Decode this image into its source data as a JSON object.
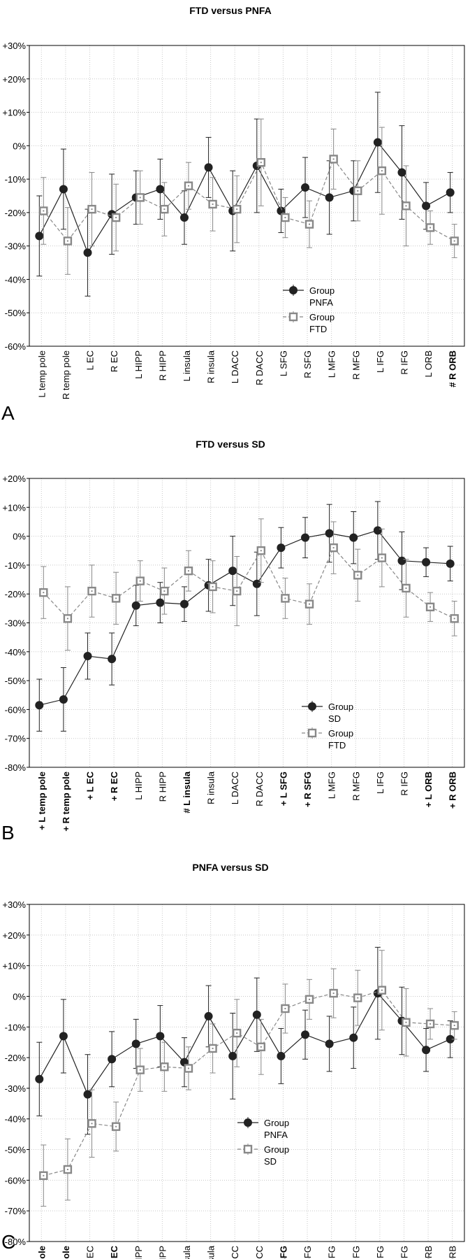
{
  "chart_data": [
    {
      "type": "line",
      "panel_label": "A",
      "title": "FTD versus PNFA",
      "ylim": [
        -60,
        30
      ],
      "ytick_labels": [
        "+30%",
        "+20%",
        "+10%",
        "0%",
        "-10%",
        "-20%",
        "-30%",
        "-40%",
        "-50%",
        "-60%"
      ],
      "grid": true,
      "legend_position": "bottom-center",
      "categories": [
        "L temp pole",
        "R temp pole",
        "L EC",
        "R EC",
        "L HIPP",
        "R HIPP",
        "L insula",
        "R insula",
        "L DACC",
        "R DACC",
        "L SFG",
        "R SFG",
        "L MFG",
        "R MFG",
        "L IFG",
        "R IFG",
        "L ORB",
        "# R ORB"
      ],
      "bold_categories": [
        "# R ORB"
      ],
      "series": [
        {
          "legend": [
            "Group",
            "PNFA"
          ],
          "style": "solid",
          "marker": "circle",
          "color": "#222222",
          "values": [
            -27,
            -13,
            -32,
            -20.5,
            -15.5,
            -13,
            -21.5,
            -6.5,
            -19.5,
            -6,
            -19.5,
            -12.5,
            -15.5,
            -13.5,
            1,
            -8,
            -18,
            -14
          ],
          "err": [
            12,
            12,
            13,
            12,
            8,
            9,
            8,
            9,
            12,
            14,
            6.5,
            9,
            11,
            9,
            15,
            14,
            7,
            6
          ]
        },
        {
          "legend": [
            "Group",
            "FTD"
          ],
          "style": "dashed",
          "marker": "square",
          "color": "#888888",
          "values": [
            -19.5,
            -28.5,
            -19,
            -21.5,
            -15.5,
            -19,
            -12,
            -17.5,
            -19,
            -5,
            -21.5,
            -23.5,
            -4,
            -13.5,
            -7.5,
            -18,
            -24.5,
            -28.5
          ],
          "err": [
            10,
            10,
            11,
            10,
            8,
            8,
            7,
            8,
            10,
            13,
            6,
            7,
            9,
            9,
            13,
            12,
            5,
            5
          ]
        }
      ]
    },
    {
      "type": "line",
      "panel_label": "B",
      "title": "FTD versus SD",
      "ylim": [
        -80,
        20
      ],
      "ytick_labels": [
        "+20%",
        "+10%",
        "0%",
        "-10%",
        "-20%",
        "-30%",
        "-40%",
        "-50%",
        "-60%",
        "-70%",
        "-80%"
      ],
      "grid": true,
      "legend_position": "bottom-right",
      "categories": [
        "+ L temp pole",
        "+ R temp pole",
        "+ L EC",
        "+ R EC",
        "L HIPP",
        "R HIPP",
        "# L insula",
        "R insula",
        "L DACC",
        "R DACC",
        "+ L SFG",
        "+ R SFG",
        "L MFG",
        "R MFG",
        "L IFG",
        "R IFG",
        "+ L ORB",
        "+ R ORB"
      ],
      "bold_categories": [
        "+ L temp pole",
        "+ R temp pole",
        "+ L EC",
        "+ R EC",
        "# L insula",
        "+ L SFG",
        "+ R SFG",
        "+ L ORB",
        "+ R ORB"
      ],
      "series": [
        {
          "legend": [
            "Group",
            "SD"
          ],
          "style": "solid",
          "marker": "circle",
          "color": "#222222",
          "values": [
            -58.5,
            -56.5,
            -41.5,
            -42.5,
            -24,
            -23,
            -23.5,
            -17,
            -12,
            -16.5,
            -4,
            -0.5,
            1,
            -0.5,
            2,
            -8.5,
            -9,
            -9.5
          ],
          "err": [
            9,
            11,
            8,
            9,
            7,
            7,
            6,
            9,
            12,
            11,
            7,
            7,
            10,
            9,
            10,
            10,
            5,
            6
          ]
        },
        {
          "legend": [
            "Group",
            "FTD"
          ],
          "style": "dashed",
          "marker": "square",
          "color": "#888888",
          "values": [
            -19.5,
            -28.5,
            -19,
            -21.5,
            -15.5,
            -19,
            -12,
            -17.5,
            -19,
            -5,
            -21.5,
            -23.5,
            -4,
            -13.5,
            -7.5,
            -18,
            -24.5,
            -28.5
          ],
          "err": [
            9,
            11,
            9,
            9,
            7,
            8,
            7,
            9,
            12,
            11,
            7,
            7,
            9,
            9,
            10,
            10,
            5,
            6
          ]
        }
      ]
    },
    {
      "type": "line",
      "panel_label": "C",
      "title": "PNFA versus SD",
      "ylim": [
        -80,
        30
      ],
      "ytick_labels": [
        "+30%",
        "+20%",
        "+10%",
        "0%",
        "-10%",
        "-20%",
        "-30%",
        "-40%",
        "-50%",
        "-60%",
        "-70%",
        "-80%"
      ],
      "grid": true,
      "legend_position": "bottom-center",
      "categories": [
        "+ L temp pole",
        "+ R temp pole",
        "L EC",
        "+ R EC",
        "L HIPP",
        "R HIPP",
        "L insula",
        "R insula",
        "L DACC",
        "R DACC",
        "# L SFG",
        "R SFG",
        "L MFG",
        "R MFG",
        "L IFG",
        "R IFG",
        "L ORB",
        "R ORB"
      ],
      "bold_categories": [
        "+ L temp pole",
        "+ R temp pole",
        "+ R EC",
        "# L SFG"
      ],
      "series": [
        {
          "legend": [
            "Group",
            "PNFA"
          ],
          "style": "solid",
          "marker": "circle",
          "color": "#222222",
          "values": [
            -27,
            -13,
            -32,
            -20.5,
            -15.5,
            -13,
            -21.5,
            -6.5,
            -19.5,
            -6,
            -19.5,
            -12.5,
            -15.5,
            -13.5,
            1,
            -8,
            -17.5,
            -14
          ],
          "err": [
            12,
            12,
            13,
            9,
            8,
            10,
            8,
            10,
            14,
            12,
            9,
            8,
            9,
            10,
            15,
            11,
            7,
            6
          ]
        },
        {
          "legend": [
            "Group",
            "SD"
          ],
          "style": "dashed",
          "marker": "square",
          "color": "#888888",
          "values": [
            -58.5,
            -56.5,
            -41.5,
            -42.5,
            -24,
            -23,
            -23.5,
            -17,
            -12,
            -16.5,
            -4,
            -1,
            1,
            -0.5,
            2,
            -8.5,
            -9,
            -9.5
          ],
          "err": [
            10,
            10,
            11,
            8,
            7,
            8,
            7,
            8,
            11,
            9,
            8,
            6.5,
            8,
            9,
            13,
            11,
            5,
            4.5
          ]
        }
      ]
    }
  ]
}
